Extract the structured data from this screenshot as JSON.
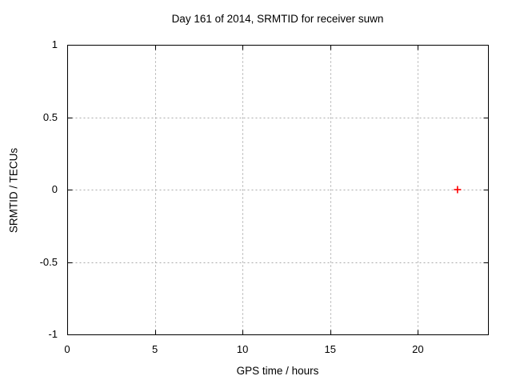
{
  "chart_data": {
    "type": "scatter",
    "title": "Day 161 of 2014, SRMTID for receiver suwn",
    "xlabel": "GPS time / hours",
    "ylabel": "SRMTID / TECUs",
    "xlim": [
      0,
      24
    ],
    "ylim": [
      -1,
      1
    ],
    "xticks": {
      "values": [
        0,
        5,
        10,
        15,
        20
      ],
      "labels": [
        "0",
        "5",
        "10",
        "15",
        "20"
      ]
    },
    "yticks": {
      "values": [
        1,
        0.5,
        0,
        -0.5,
        -1
      ],
      "labels": [
        "1",
        "0.5",
        "0",
        "-0.5",
        "-1"
      ]
    },
    "grid": true,
    "grid_style": "dashed",
    "legend": "none",
    "mirrored_ticks": true,
    "series": [
      {
        "name": "SRMTID",
        "marker": "plus",
        "color": "#ff0000",
        "points": [
          {
            "x": 22.26,
            "y": 0.0
          }
        ]
      }
    ],
    "colors": {
      "axis": "#000000",
      "grid": "#aaaaaa",
      "text": "#000000",
      "background": "#ffffff"
    }
  }
}
